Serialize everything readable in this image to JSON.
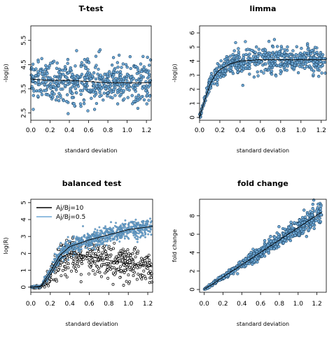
{
  "chart_data": [
    {
      "type": "scatter",
      "title": "T-test",
      "xlabel": "standard deviation",
      "ylabel": "-log(p)",
      "xlim": [
        0,
        1.25
      ],
      "ylim": [
        2.2,
        6.1
      ],
      "xticks": [
        "0.0",
        "0.2",
        "0.4",
        "0.6",
        "0.8",
        "1.0",
        "1.2"
      ],
      "yticks": [
        "2.5",
        "3.5",
        "4.5",
        "5.5"
      ],
      "grid": false,
      "series": [
        {
          "color": "#6fa9d6",
          "trend": {
            "x": [
              0.0,
              0.2,
              0.4,
              0.6,
              0.8,
              1.0,
              1.25
            ],
            "y": [
              3.9,
              3.85,
              3.85,
              3.8,
              3.75,
              3.75,
              3.75
            ]
          },
          "spread": {
            "mean": 3.85,
            "sd": 0.45,
            "n": 550
          }
        }
      ]
    },
    {
      "type": "scatter",
      "title": "limma",
      "xlabel": "standard deviation",
      "ylabel": "-log(p)",
      "xlim": [
        0,
        1.25
      ],
      "ylim": [
        -0.2,
        6.5
      ],
      "xticks": [
        "0.0",
        "0.2",
        "0.4",
        "0.6",
        "0.8",
        "1.0",
        "1.2"
      ],
      "yticks": [
        "0",
        "1",
        "2",
        "3",
        "4",
        "5",
        "6"
      ],
      "grid": false,
      "series": [
        {
          "color": "#6fa9d6",
          "trend": {
            "x": [
              0.0,
              0.05,
              0.1,
              0.15,
              0.2,
              0.3,
              0.4,
              0.6,
              0.8,
              1.0,
              1.25
            ],
            "y": [
              0.0,
              1.2,
              2.3,
              3.0,
              3.4,
              3.8,
              4.0,
              4.1,
              4.1,
              4.1,
              4.1
            ]
          },
          "spread": {
            "sd": 0.45,
            "n": 600
          }
        }
      ]
    },
    {
      "type": "scatter",
      "title": "balanced test",
      "xlabel": "standard deviation",
      "ylabel": "log(R)",
      "xlim": [
        0,
        1.25
      ],
      "ylim": [
        -0.3,
        5.2
      ],
      "xticks": [
        "0.0",
        "0.2",
        "0.4",
        "0.6",
        "0.8",
        "1.0",
        "1.2"
      ],
      "yticks": [
        "0",
        "1",
        "2",
        "3",
        "4",
        "5"
      ],
      "grid": false,
      "legend": {
        "position": "top-left",
        "entries": [
          "Aj/Bj=10",
          "Aj/Bj=0.5"
        ]
      },
      "series": [
        {
          "name": "Aj/Bj=10",
          "color": "#000000",
          "trend": {
            "x": [
              0.0,
              0.1,
              0.2,
              0.3,
              0.4,
              0.6,
              0.8,
              1.0,
              1.25
            ],
            "y": [
              0.0,
              0.0,
              0.7,
              1.7,
              2.0,
              1.8,
              1.6,
              1.4,
              1.2
            ]
          },
          "spread": {
            "sd": 0.5,
            "n": 500
          }
        },
        {
          "name": "Aj/Bj=0.5",
          "color": "#6fa9d6",
          "trend": {
            "x": [
              0.0,
              0.1,
              0.2,
              0.3,
              0.4,
              0.6,
              0.8,
              1.0,
              1.25
            ],
            "y": [
              0.0,
              0.05,
              0.9,
              1.9,
              2.4,
              2.8,
              3.1,
              3.4,
              3.6
            ]
          },
          "spread": {
            "sd": 0.25,
            "n": 900
          }
        }
      ]
    },
    {
      "type": "scatter",
      "title": "fold change",
      "xlabel": "standard deviation",
      "ylabel": "fold change",
      "xlim": [
        -0.05,
        1.3
      ],
      "ylim": [
        -0.3,
        9.8
      ],
      "xticks": [
        "0.0",
        "0.2",
        "0.4",
        "0.6",
        "0.8",
        "1.0",
        "1.2"
      ],
      "yticks": [
        "0",
        "2",
        "4",
        "6",
        "8"
      ],
      "grid": false,
      "series": [
        {
          "color": "#6fa9d6",
          "trend": {
            "x": [
              0.0,
              1.25
            ],
            "y": [
              0.0,
              8.4
            ]
          },
          "spread": {
            "sd_per_unit": 0.45,
            "n": 700
          }
        }
      ]
    }
  ]
}
